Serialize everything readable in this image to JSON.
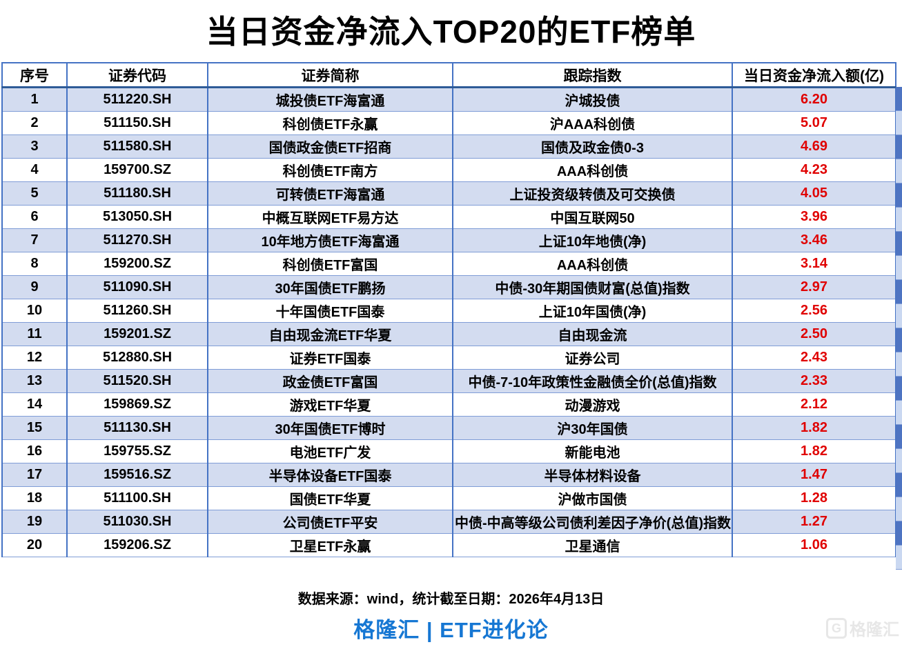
{
  "title": "当日资金净流入TOP20的ETF榜单",
  "chart_data": {
    "type": "table",
    "title": "当日资金净流入TOP20的ETF榜单",
    "columns": [
      "序号",
      "证券代码",
      "证券简称",
      "跟踪指数",
      "当日资金净流入额(亿)"
    ],
    "rows": [
      {
        "rank": "1",
        "code": "511220.SH",
        "name": "城投债ETF海富通",
        "index": "沪城投债",
        "value": "6.20"
      },
      {
        "rank": "2",
        "code": "511150.SH",
        "name": "科创债ETF永赢",
        "index": "沪AAA科创债",
        "value": "5.07"
      },
      {
        "rank": "3",
        "code": "511580.SH",
        "name": "国债政金债ETF招商",
        "index": "国债及政金债0-3",
        "value": "4.69"
      },
      {
        "rank": "4",
        "code": "159700.SZ",
        "name": "科创债ETF南方",
        "index": "AAA科创债",
        "value": "4.23"
      },
      {
        "rank": "5",
        "code": "511180.SH",
        "name": "可转债ETF海富通",
        "index": "上证投资级转债及可交换债",
        "value": "4.05"
      },
      {
        "rank": "6",
        "code": "513050.SH",
        "name": "中概互联网ETF易方达",
        "index": "中国互联网50",
        "value": "3.96"
      },
      {
        "rank": "7",
        "code": "511270.SH",
        "name": "10年地方债ETF海富通",
        "index": "上证10年地债(净)",
        "value": "3.46"
      },
      {
        "rank": "8",
        "code": "159200.SZ",
        "name": "科创债ETF富国",
        "index": "AAA科创债",
        "value": "3.14"
      },
      {
        "rank": "9",
        "code": "511090.SH",
        "name": "30年国债ETF鹏扬",
        "index": "中债-30年期国债财富(总值)指数",
        "value": "2.97"
      },
      {
        "rank": "10",
        "code": "511260.SH",
        "name": "十年国债ETF国泰",
        "index": "上证10年国债(净)",
        "value": "2.56"
      },
      {
        "rank": "11",
        "code": "159201.SZ",
        "name": "自由现金流ETF华夏",
        "index": "自由现金流",
        "value": "2.50"
      },
      {
        "rank": "12",
        "code": "512880.SH",
        "name": "证券ETF国泰",
        "index": "证券公司",
        "value": "2.43"
      },
      {
        "rank": "13",
        "code": "511520.SH",
        "name": "政金债ETF富国",
        "index": "中债-7-10年政策性金融债全价(总值)指数",
        "value": "2.33"
      },
      {
        "rank": "14",
        "code": "159869.SZ",
        "name": "游戏ETF华夏",
        "index": "动漫游戏",
        "value": "2.12"
      },
      {
        "rank": "15",
        "code": "511130.SH",
        "name": "30年国债ETF博时",
        "index": "沪30年国债",
        "value": "1.82"
      },
      {
        "rank": "16",
        "code": "159755.SZ",
        "name": "电池ETF广发",
        "index": "新能电池",
        "value": "1.82"
      },
      {
        "rank": "17",
        "code": "159516.SZ",
        "name": "半导体设备ETF国泰",
        "index": "半导体材料设备",
        "value": "1.47"
      },
      {
        "rank": "18",
        "code": "511100.SH",
        "name": "国债ETF华夏",
        "index": "沪做市国债",
        "value": "1.28"
      },
      {
        "rank": "19",
        "code": "511030.SH",
        "name": "公司债ETF平安",
        "index": "中债-中高等级公司债利差因子净价(总值)指数",
        "value": "1.27"
      },
      {
        "rank": "20",
        "code": "159206.SZ",
        "name": "卫星ETF永赢",
        "index": "卫星通信",
        "value": "1.06"
      }
    ]
  },
  "footer": {
    "source": "数据来源：wind，统计截至日期：2026年4月13日",
    "brand": "格隆汇 | ETF进化论",
    "watermark": "格隆汇",
    "watermark_icon": "G"
  },
  "colors": {
    "band": "#d3dcf0",
    "border": "#4472c4",
    "header_border": "#2e5b97",
    "row_border": "#7f9cd6",
    "value_red": "#e00000",
    "brand_blue": "#1677d3",
    "strip_dark": "#4e74c2",
    "strip_light": "#cad8f1",
    "watermark": "#e7e7e7"
  }
}
